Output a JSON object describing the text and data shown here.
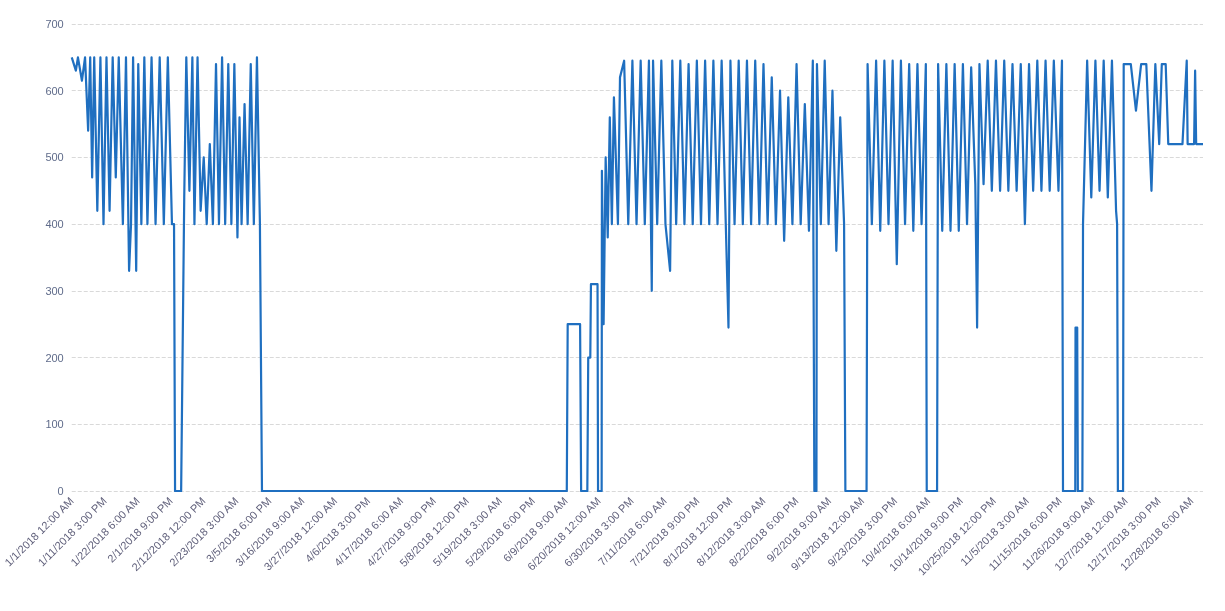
{
  "chart_data": {
    "type": "line",
    "xlim": [
      "2018-01-01T00:00",
      "2018-12-31T23:00"
    ],
    "xticks": [
      {
        "value": "2018-01-01T00:00",
        "label": "1/1/2018 12:00 AM"
      },
      {
        "value": "2018-01-11T15:00",
        "label": "1/11/2018 3:00 PM"
      },
      {
        "value": "2018-01-22T06:00",
        "label": "1/22/2018 6:00 AM"
      },
      {
        "value": "2018-02-01T21:00",
        "label": "2/1/2018 9:00 PM"
      },
      {
        "value": "2018-02-12T12:00",
        "label": "2/12/2018 12:00 PM"
      },
      {
        "value": "2018-02-23T03:00",
        "label": "2/23/2018 3:00 AM"
      },
      {
        "value": "2018-03-05T18:00",
        "label": "3/5/2018 6:00 PM"
      },
      {
        "value": "2018-03-16T09:00",
        "label": "3/16/2018 9:00 AM"
      },
      {
        "value": "2018-03-27T00:00",
        "label": "3/27/2018 12:00 AM"
      },
      {
        "value": "2018-04-06T15:00",
        "label": "4/6/2018 3:00 PM"
      },
      {
        "value": "2018-04-17T06:00",
        "label": "4/17/2018 6:00 AM"
      },
      {
        "value": "2018-04-27T21:00",
        "label": "4/27/2018 9:00 PM"
      },
      {
        "value": "2018-05-08T12:00",
        "label": "5/8/2018 12:00 PM"
      },
      {
        "value": "2018-05-19T03:00",
        "label": "5/19/2018 3:00 AM"
      },
      {
        "value": "2018-05-29T18:00",
        "label": "5/29/2018 6:00 PM"
      },
      {
        "value": "2018-06-09T09:00",
        "label": "6/9/2018 9:00 AM"
      },
      {
        "value": "2018-06-20T00:00",
        "label": "6/20/2018 12:00 AM"
      },
      {
        "value": "2018-06-30T15:00",
        "label": "6/30/2018 3:00 PM"
      },
      {
        "value": "2018-07-11T06:00",
        "label": "7/11/2018 6:00 AM"
      },
      {
        "value": "2018-07-21T21:00",
        "label": "7/21/2018 9:00 PM"
      },
      {
        "value": "2018-08-01T12:00",
        "label": "8/1/2018 12:00 PM"
      },
      {
        "value": "2018-08-12T03:00",
        "label": "8/12/2018 3:00 AM"
      },
      {
        "value": "2018-08-22T18:00",
        "label": "8/22/2018 6:00 PM"
      },
      {
        "value": "2018-09-02T09:00",
        "label": "9/2/2018 9:00 AM"
      },
      {
        "value": "2018-09-13T00:00",
        "label": "9/13/2018 12:00 AM"
      },
      {
        "value": "2018-09-23T15:00",
        "label": "9/23/2018 3:00 PM"
      },
      {
        "value": "2018-10-04T06:00",
        "label": "10/4/2018 6:00 AM"
      },
      {
        "value": "2018-10-14T21:00",
        "label": "10/14/2018 9:00 PM"
      },
      {
        "value": "2018-10-25T12:00",
        "label": "10/25/2018 12:00 PM"
      },
      {
        "value": "2018-11-05T03:00",
        "label": "11/5/2018 3:00 AM"
      },
      {
        "value": "2018-11-15T18:00",
        "label": "11/15/2018 6:00 PM"
      },
      {
        "value": "2018-11-26T09:00",
        "label": "11/26/2018 9:00 AM"
      },
      {
        "value": "2018-12-07T00:00",
        "label": "12/7/2018 12:00 AM"
      },
      {
        "value": "2018-12-17T15:00",
        "label": "12/17/2018 3:00 PM"
      },
      {
        "value": "2018-12-28T06:00",
        "label": "12/28/2018 6:00 AM"
      }
    ],
    "ylim": [
      0,
      700
    ],
    "yticks": [
      0,
      100,
      200,
      300,
      400,
      500,
      600,
      700
    ],
    "grid": "y",
    "marker": "none",
    "series": [
      {
        "color": "#1f6fc0",
        "x": [
          "2018-01-01T00:00",
          "2018-01-02T08:00",
          "2018-01-03T00:00",
          "2018-01-04T07:00",
          "2018-01-05T07:00",
          "2018-01-06T07:00",
          "2018-01-06T23:00",
          "2018-01-07T14:00",
          "2018-01-08T06:00",
          "2018-01-09T06:00",
          "2018-01-10T06:00",
          "2018-01-11T06:00",
          "2018-01-12T05:00",
          "2018-01-13T05:00",
          "2018-01-14T05:00",
          "2018-01-15T05:00",
          "2018-01-16T04:00",
          "2018-01-17T12:00",
          "2018-01-18T12:00",
          "2018-01-19T12:00",
          "2018-01-20T03:00",
          "2018-01-20T19:00",
          "2018-01-21T19:00",
          "2018-01-22T11:00",
          "2018-01-23T11:00",
          "2018-01-24T10:00",
          "2018-01-25T10:00",
          "2018-01-26T18:00",
          "2018-01-28T01:00",
          "2018-01-29T09:00",
          "2018-01-30T17:00",
          "2018-02-01T00:00",
          "2018-02-02T08:00",
          "2018-02-03T00:00",
          "2018-02-03T08:00",
          "2018-02-05T07:00",
          "2018-02-06T07:00",
          "2018-02-06T23:00",
          "2018-02-07T23:00",
          "2018-02-08T22:00",
          "2018-02-09T14:00",
          "2018-02-10T14:00",
          "2018-02-11T14:00",
          "2018-02-12T14:00",
          "2018-02-13T13:00",
          "2018-02-14T13:00",
          "2018-02-15T13:00",
          "2018-02-16T13:00",
          "2018-02-17T12:00",
          "2018-02-18T12:00",
          "2018-02-19T12:00",
          "2018-02-20T12:00",
          "2018-02-21T12:00",
          "2018-02-22T11:00",
          "2018-02-23T11:00",
          "2018-02-24T03:00",
          "2018-02-24T19:00",
          "2018-02-25T18:00",
          "2018-02-26T18:00",
          "2018-02-27T18:00",
          "2018-02-28T18:00",
          "2018-03-01T18:00",
          "2018-03-02T17:00",
          "2018-03-03T09:00",
          "2018-06-09T17:00",
          "2018-06-10T00:00",
          "2018-06-14T00:00",
          "2018-06-14T08:00",
          "2018-06-16T08:00",
          "2018-06-16T15:00",
          "2018-06-17T07:00",
          "2018-06-17T12:00",
          "2018-06-18T23:00",
          "2018-06-19T15:00",
          "2018-06-19T19:00",
          "2018-06-20T23:00",
          "2018-06-21T01:00",
          "2018-06-21T14:00",
          "2018-06-22T06:00",
          "2018-06-22T22:00",
          "2018-06-23T14:00",
          "2018-06-24T06:00",
          "2018-06-24T22:00",
          "2018-06-26T05:00",
          "2018-06-26T21:00",
          "2018-06-28T05:00",
          "2018-06-29T13:00",
          "2018-06-30T21:00",
          "2018-07-02T05:00",
          "2018-07-03T13:00",
          "2018-07-04T21:00",
          "2018-07-06T05:00",
          "2018-07-07T03:00",
          "2018-07-07T13:00",
          "2018-07-08T21:00",
          "2018-07-10T05:00",
          "2018-07-11T13:00",
          "2018-07-13T01:00",
          "2018-07-13T18:00",
          "2018-07-15T00:00",
          "2018-07-16T08:00",
          "2018-07-17T16:00",
          "2018-07-19T00:00",
          "2018-07-20T08:00",
          "2018-07-21T16:00",
          "2018-07-23T00:00",
          "2018-07-24T08:00",
          "2018-07-25T16:00",
          "2018-07-27T00:00",
          "2018-07-28T08:00",
          "2018-07-29T16:00",
          "2018-07-31T00:00",
          "2018-07-31T21:00",
          "2018-08-01T12:00",
          "2018-08-02T20:00",
          "2018-08-04T04:00",
          "2018-08-05T12:00",
          "2018-08-06T20:00",
          "2018-08-08T04:00",
          "2018-08-09T12:00",
          "2018-08-10T20:00",
          "2018-08-12T04:00",
          "2018-08-13T12:00",
          "2018-08-14T20:00",
          "2018-08-16T04:00",
          "2018-08-17T12:00",
          "2018-08-18T20:00",
          "2018-08-20T04:00",
          "2018-08-21T12:00",
          "2018-08-22T20:00",
          "2018-08-24T04:00",
          "2018-08-25T12:00",
          "2018-08-26T20:00",
          "2018-08-28T02:00",
          "2018-08-28T06:00",
          "2018-08-28T14:00",
          "2018-08-29T06:00",
          "2018-08-29T10:00",
          "2018-08-30T16:00",
          "2018-08-31T22:00",
          "2018-09-02T04:00",
          "2018-09-03T10:00",
          "2018-09-04T16:00",
          "2018-09-05T22:00",
          "2018-09-07T04:00",
          "2018-09-07T14:00",
          "2018-09-14T10:00",
          "2018-09-14T18:00",
          "2018-09-16T03:00",
          "2018-09-17T12:00",
          "2018-09-18T20:00",
          "2018-09-20T04:00",
          "2018-09-21T12:00",
          "2018-09-22T20:00",
          "2018-09-24T04:00",
          "2018-09-25T12:00",
          "2018-09-26T20:00",
          "2018-09-28T04:00",
          "2018-09-29T12:00",
          "2018-09-30T20:00",
          "2018-10-02T04:00",
          "2018-10-03T13:00",
          "2018-10-03T20:00",
          "2018-10-07T04:00",
          "2018-10-07T12:00",
          "2018-10-08T20:00",
          "2018-10-10T04:00",
          "2018-10-11T12:00",
          "2018-10-12T20:00",
          "2018-10-14T04:00",
          "2018-10-15T12:00",
          "2018-10-16T20:00",
          "2018-10-18T04:00",
          "2018-10-19T12:00",
          "2018-10-20T02:00",
          "2018-10-20T20:00",
          "2018-10-22T04:00",
          "2018-10-23T12:00",
          "2018-10-24T20:00",
          "2018-10-26T04:00",
          "2018-10-27T12:00",
          "2018-10-28T20:00",
          "2018-10-30T04:00",
          "2018-10-31T12:00",
          "2018-11-01T20:00",
          "2018-11-03T04:00",
          "2018-11-04T12:00",
          "2018-11-05T20:00",
          "2018-11-07T04:00",
          "2018-11-08T12:00",
          "2018-11-09T20:00",
          "2018-11-11T04:00",
          "2018-11-12T12:00",
          "2018-11-13T20:00",
          "2018-11-15T08:00",
          "2018-11-16T11:00",
          "2018-11-16T19:00",
          "2018-11-20T18:00",
          "2018-11-20T20:00",
          "2018-11-21T09:00",
          "2018-11-21T14:00",
          "2018-11-23T01:00",
          "2018-11-23T06:00",
          "2018-11-24T14:00",
          "2018-11-25T22:00",
          "2018-11-27T06:00",
          "2018-11-28T14:00",
          "2018-11-29T22:00",
          "2018-12-01T06:00",
          "2018-12-02T14:00",
          "2018-12-03T22:00",
          "2018-12-04T06:00",
          "2018-12-04T12:00",
          "2018-12-06T04:00",
          "2018-12-06T09:00",
          "2018-12-08T16:00",
          "2018-12-10T08:00",
          "2018-12-12T00:00",
          "2018-12-13T16:00",
          "2018-12-15T08:00",
          "2018-12-16T14:00",
          "2018-12-17T20:00",
          "2018-12-18T16:00",
          "2018-12-19T22:00",
          "2018-12-20T18:00",
          "2018-12-23T16:00",
          "2018-12-25T08:00",
          "2018-12-26T17:00",
          "2018-12-27T00:00",
          "2018-12-29T02:00",
          "2018-12-29T10:00",
          "2018-12-29T18:00",
          "2018-12-31T23:00"
        ],
        "values": [
          650,
          630,
          650,
          615,
          650,
          540,
          650,
          470,
          650,
          420,
          650,
          400,
          650,
          420,
          650,
          470,
          650,
          400,
          650,
          330,
          400,
          650,
          330,
          640,
          400,
          650,
          400,
          650,
          400,
          650,
          400,
          650,
          400,
          400,
          0,
          0,
          440,
          650,
          450,
          650,
          400,
          650,
          420,
          500,
          400,
          520,
          400,
          640,
          400,
          650,
          400,
          640,
          400,
          640,
          380,
          560,
          400,
          580,
          400,
          640,
          400,
          650,
          400,
          0,
          0,
          250,
          250,
          0,
          0,
          200,
          200,
          310,
          310,
          310,
          0,
          0,
          480,
          250,
          500,
          380,
          560,
          400,
          590,
          400,
          620,
          645,
          400,
          645,
          400,
          645,
          400,
          645,
          300,
          645,
          400,
          645,
          400,
          330,
          645,
          400,
          645,
          400,
          640,
          400,
          645,
          400,
          645,
          400,
          645,
          400,
          645,
          400,
          245,
          645,
          400,
          645,
          400,
          645,
          400,
          645,
          400,
          640,
          400,
          620,
          400,
          600,
          375,
          590,
          400,
          640,
          400,
          580,
          390,
          645,
          400,
          0,
          0,
          640,
          400,
          645,
          400,
          600,
          360,
          560,
          400,
          0,
          0,
          640,
          400,
          645,
          390,
          645,
          400,
          645,
          340,
          645,
          400,
          640,
          390,
          640,
          400,
          640,
          0,
          0,
          640,
          390,
          640,
          390,
          640,
          390,
          640,
          400,
          635,
          460,
          245,
          640,
          460,
          645,
          450,
          645,
          450,
          645,
          450,
          640,
          450,
          640,
          400,
          640,
          450,
          645,
          450,
          645,
          450,
          645,
          450,
          645,
          0,
          0,
          245,
          245,
          0,
          0,
          400,
          645,
          440,
          645,
          450,
          645,
          440,
          645,
          420,
          400,
          0,
          0,
          640,
          640,
          570,
          640,
          640,
          450,
          640,
          520,
          640,
          640,
          520,
          520,
          520,
          645,
          520,
          520,
          630,
          520,
          520
        ]
      }
    ]
  }
}
